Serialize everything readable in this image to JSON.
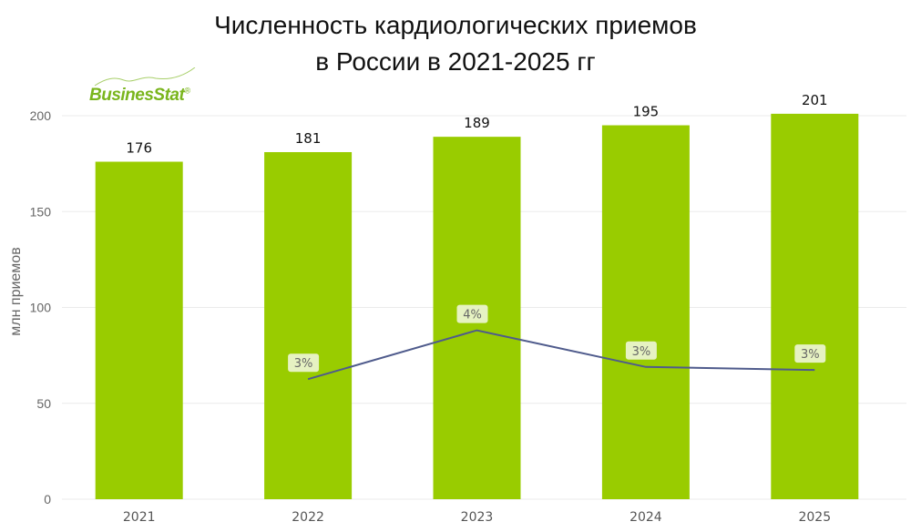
{
  "title_lines": [
    "Численность кардиологических приемов",
    "в России в 2021-2025 гг"
  ],
  "logo": {
    "text": "BusinesStat",
    "reg": "®"
  },
  "chart_data": {
    "type": "bar",
    "title": "Численность кардиологических приемов в России в 2021-2025 гг",
    "xlabel": "",
    "ylabel": "млн приемов",
    "categories": [
      "2021",
      "2022",
      "2023",
      "2024",
      "2025"
    ],
    "values": [
      176,
      181,
      189,
      195,
      201
    ],
    "value_labels": [
      "176",
      "181",
      "189",
      "195",
      "201"
    ],
    "ylim": [
      0,
      200
    ],
    "yticks": [
      0,
      50,
      100,
      150,
      200
    ],
    "grid": true,
    "bar_color": "#99cc00",
    "growth_line": {
      "type": "line",
      "categories": [
        "2022",
        "2023",
        "2024",
        "2025"
      ],
      "values": [
        2.8,
        4.4,
        3.2,
        3.1
      ],
      "labels": [
        "3%",
        "4%",
        "3%",
        "3%"
      ],
      "unit": "%",
      "color": "#4f5b8c",
      "label_bg": "#e6f2c2"
    }
  }
}
